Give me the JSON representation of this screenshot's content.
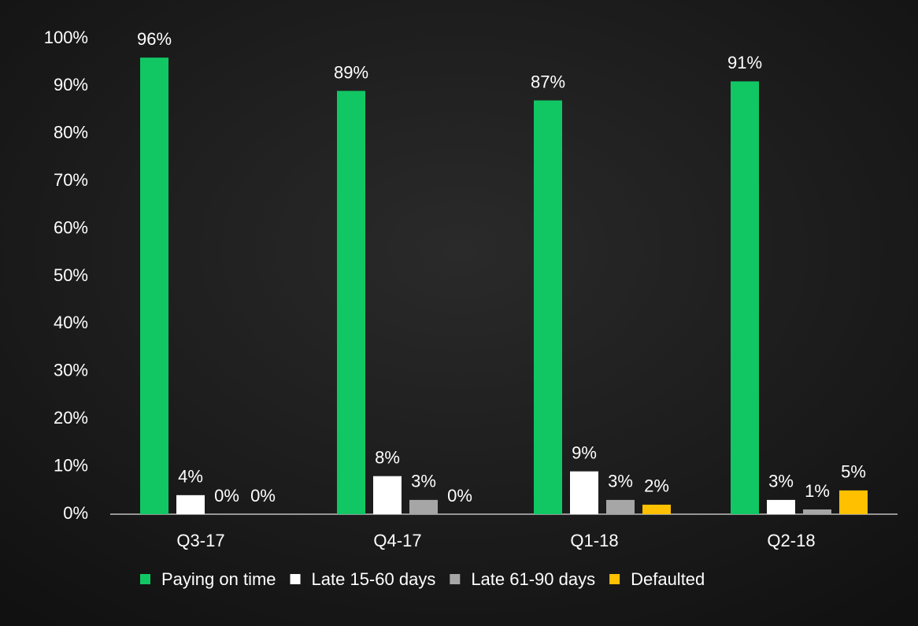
{
  "chart_data": {
    "type": "bar",
    "categories": [
      "Q3-17",
      "Q4-17",
      "Q1-18",
      "Q2-18"
    ],
    "series": [
      {
        "name": "Paying on time",
        "color": "#11c764",
        "values": [
          96,
          89,
          87,
          91
        ],
        "value_labels": [
          "96%",
          "89%",
          "87%",
          "91%"
        ]
      },
      {
        "name": "Late 15-60 days",
        "color": "#ffffff",
        "values": [
          4,
          8,
          9,
          3
        ],
        "value_labels": [
          "4%",
          "8%",
          "9%",
          "3%"
        ]
      },
      {
        "name": "Late 61-90 days",
        "color": "#a6a6a6",
        "values": [
          0,
          3,
          3,
          1
        ],
        "value_labels": [
          "0%",
          "3%",
          "3%",
          "1%"
        ]
      },
      {
        "name": "Defaulted",
        "color": "#ffc000",
        "values": [
          0,
          0,
          2,
          5
        ],
        "value_labels": [
          "0%",
          "0%",
          "2%",
          "5%"
        ]
      }
    ],
    "ylim": [
      0,
      100
    ],
    "yticks": [
      {
        "value": 0,
        "label": "0%"
      },
      {
        "value": 10,
        "label": "10%"
      },
      {
        "value": 20,
        "label": "20%"
      },
      {
        "value": 30,
        "label": "30%"
      },
      {
        "value": 40,
        "label": "40%"
      },
      {
        "value": 50,
        "label": "50%"
      },
      {
        "value": 60,
        "label": "60%"
      },
      {
        "value": 70,
        "label": "70%"
      },
      {
        "value": 80,
        "label": "80%"
      },
      {
        "value": 90,
        "label": "90%"
      },
      {
        "value": 100,
        "label": "100%"
      }
    ],
    "legend": "bottom"
  }
}
